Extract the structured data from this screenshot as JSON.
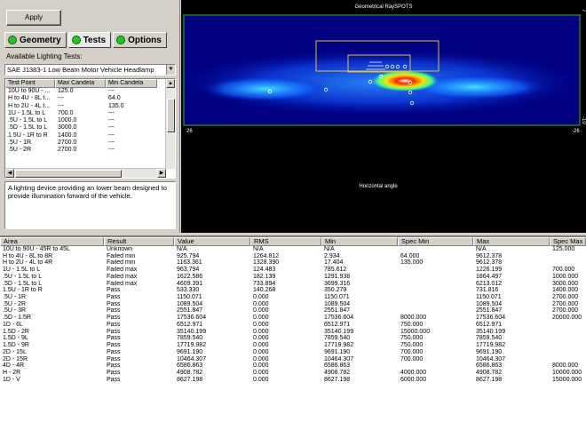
{
  "toolbar": {
    "apply_label": "Apply"
  },
  "tabs": [
    {
      "label": "Geometry",
      "active": false
    },
    {
      "label": "Tests",
      "active": true
    },
    {
      "label": "Options",
      "active": false
    }
  ],
  "tests_panel": {
    "caption": "Available Lighting Tests:",
    "selected_test": "SAE J1383-1 Low Beam Motor Vehicle Headlamp",
    "columns": [
      "Test Point",
      "Max Candela",
      "Min Candela"
    ],
    "rows": [
      [
        "10U to 90U - ...",
        "125.0",
        "---"
      ],
      [
        "H to 4U - 8L t...",
        "---",
        "64.0"
      ],
      [
        "H to 2U - 4L t...",
        "---",
        "135.0"
      ],
      [
        "1U - 1.5L to L",
        "700.0",
        "---"
      ],
      [
        ".5U - 1.5L to L",
        "1000.0",
        "---"
      ],
      [
        ".5D - 1.5L to L",
        "3000.0",
        "---"
      ],
      [
        "1.5U - 1R to R",
        "1400.0",
        "---"
      ],
      [
        ".5U - 1R",
        "2700.0",
        "---"
      ],
      [
        ".5U - 2R",
        "2700.0",
        "---"
      ]
    ],
    "description": "A lighting device providing an lower beam designed to provide illumination forward of the vehicle."
  },
  "plot": {
    "title": "Geometrical RaySPOTS",
    "xlabel": "Horizontal angle",
    "x_min_label": "26",
    "x_max_label": "-26",
    "y_top_label": "7",
    "y_bottom_label": "-10",
    "colors": {
      "background": "#000000",
      "frame": "#20c020",
      "hot": "#ff2000",
      "cold": "#0010a0"
    }
  },
  "results": {
    "columns": [
      "Area",
      "Result",
      "Value",
      "RMS",
      "Min",
      "Spec Min",
      "Max",
      "Spec Max"
    ],
    "rows": [
      [
        "10U to 90U - 45R to 45L",
        "Unknown",
        "N/A",
        "N/A",
        "N/A",
        "",
        "N/A",
        "125.000"
      ],
      [
        "H to 4U - 8L to 8R",
        "Failed min",
        "925.794",
        "1264.812",
        "2.934",
        "64.000",
        "9612.378",
        ""
      ],
      [
        "H to 2U - 4L to 4R",
        "Failed min",
        "1163.361",
        "1328.390",
        "17.404",
        "135.000",
        "9612.378",
        ""
      ],
      [
        "1U - 1.5L to L",
        "Failed max",
        "963.794",
        "124.483",
        "785.612",
        "",
        "1226.199",
        "700.000"
      ],
      [
        ".5U - 1.5L to L",
        "Failed max",
        "1622.586",
        "182.139",
        "1291.938",
        "",
        "1864.497",
        "1000.000"
      ],
      [
        ".5D - 1.5L to L",
        "Failed max",
        "4609.391",
        "733.894",
        "3699.316",
        "",
        "6213.012",
        "3000.000"
      ],
      [
        "1.5U - 1R to R",
        "Pass",
        "533.330",
        "140.268",
        "350.279",
        "",
        "731.816",
        "1400.000"
      ],
      [
        ".5U - 1R",
        "Pass",
        "1150.071",
        "0.000",
        "1150.071",
        "",
        "1150.071",
        "2700.000"
      ],
      [
        ".5U - 2R",
        "Pass",
        "1089.504",
        "0.000",
        "1089.504",
        "",
        "1089.504",
        "2700.000"
      ],
      [
        ".5U - 3R",
        "Pass",
        "2551.847",
        "0.000",
        "2551.847",
        "",
        "2551.847",
        "2700.000"
      ],
      [
        ".5D - 1.5R",
        "Pass",
        "17536.604",
        "0.000",
        "17536.604",
        "8000.000",
        "17536.604",
        "20000.000"
      ],
      [
        "1D - 6L",
        "Pass",
        "6512.971",
        "0.000",
        "6512.971",
        "750.000",
        "6512.971",
        ""
      ],
      [
        "1.5D - 2R",
        "Pass",
        "35140.199",
        "0.000",
        "35140.199",
        "15000.000",
        "35140.199",
        ""
      ],
      [
        "1.5D - 9L",
        "Pass",
        "7859.540",
        "0.000",
        "7859.540",
        "750.000",
        "7859.540",
        ""
      ],
      [
        "1.5D - 9R",
        "Pass",
        "17719.982",
        "0.000",
        "17719.982",
        "750.000",
        "17719.982",
        ""
      ],
      [
        "2D - 15L",
        "Pass",
        "9691.190",
        "0.000",
        "9691.190",
        "700.000",
        "9691.190",
        ""
      ],
      [
        "2D - 15R",
        "Pass",
        "10464.307",
        "0.000",
        "10464.307",
        "700.000",
        "10464.307",
        ""
      ],
      [
        "4D - 4R",
        "Pass",
        "6586.863",
        "0.000",
        "6586.863",
        "",
        "6586.863",
        "8000.000"
      ],
      [
        "H - 2R",
        "Pass",
        "4908.782",
        "0.000",
        "4908.782",
        "4000.000",
        "4908.782",
        "10000.000"
      ],
      [
        "1D - V",
        "Pass",
        "8627.198",
        "0.000",
        "8627.198",
        "6000.000",
        "8627.198",
        "15000.000"
      ]
    ]
  }
}
